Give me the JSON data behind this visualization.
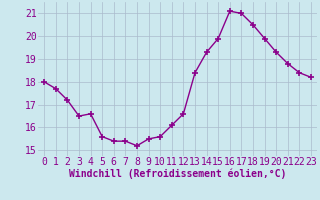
{
  "x": [
    0,
    1,
    2,
    3,
    4,
    5,
    6,
    7,
    8,
    9,
    10,
    11,
    12,
    13,
    14,
    15,
    16,
    17,
    18,
    19,
    20,
    21,
    22,
    23
  ],
  "y": [
    18.0,
    17.7,
    17.2,
    16.5,
    16.6,
    15.6,
    15.4,
    15.4,
    15.2,
    15.5,
    15.6,
    16.1,
    16.6,
    18.4,
    19.3,
    19.9,
    21.1,
    21.0,
    20.5,
    19.9,
    19.3,
    18.8,
    18.4,
    18.2
  ],
  "line_color": "#8B008B",
  "marker": "+",
  "markersize": 4,
  "linewidth": 1,
  "xlabel": "Windchill (Refroidissement éolien,°C)",
  "xlabel_fontsize": 7,
  "ylim": [
    14.75,
    21.5
  ],
  "yticks": [
    15,
    16,
    17,
    18,
    19,
    20,
    21
  ],
  "xticks": [
    0,
    1,
    2,
    3,
    4,
    5,
    6,
    7,
    8,
    9,
    10,
    11,
    12,
    13,
    14,
    15,
    16,
    17,
    18,
    19,
    20,
    21,
    22,
    23
  ],
  "xtick_labels": [
    "0",
    "1",
    "2",
    "3",
    "4",
    "5",
    "6",
    "7",
    "8",
    "9",
    "10",
    "11",
    "12",
    "13",
    "14",
    "15",
    "16",
    "17",
    "18",
    "19",
    "20",
    "21",
    "22",
    "23"
  ],
  "background_color": "#cce8ee",
  "grid_color": "#aabbcc",
  "tick_fontsize": 7,
  "xlim": [
    -0.5,
    23.5
  ]
}
